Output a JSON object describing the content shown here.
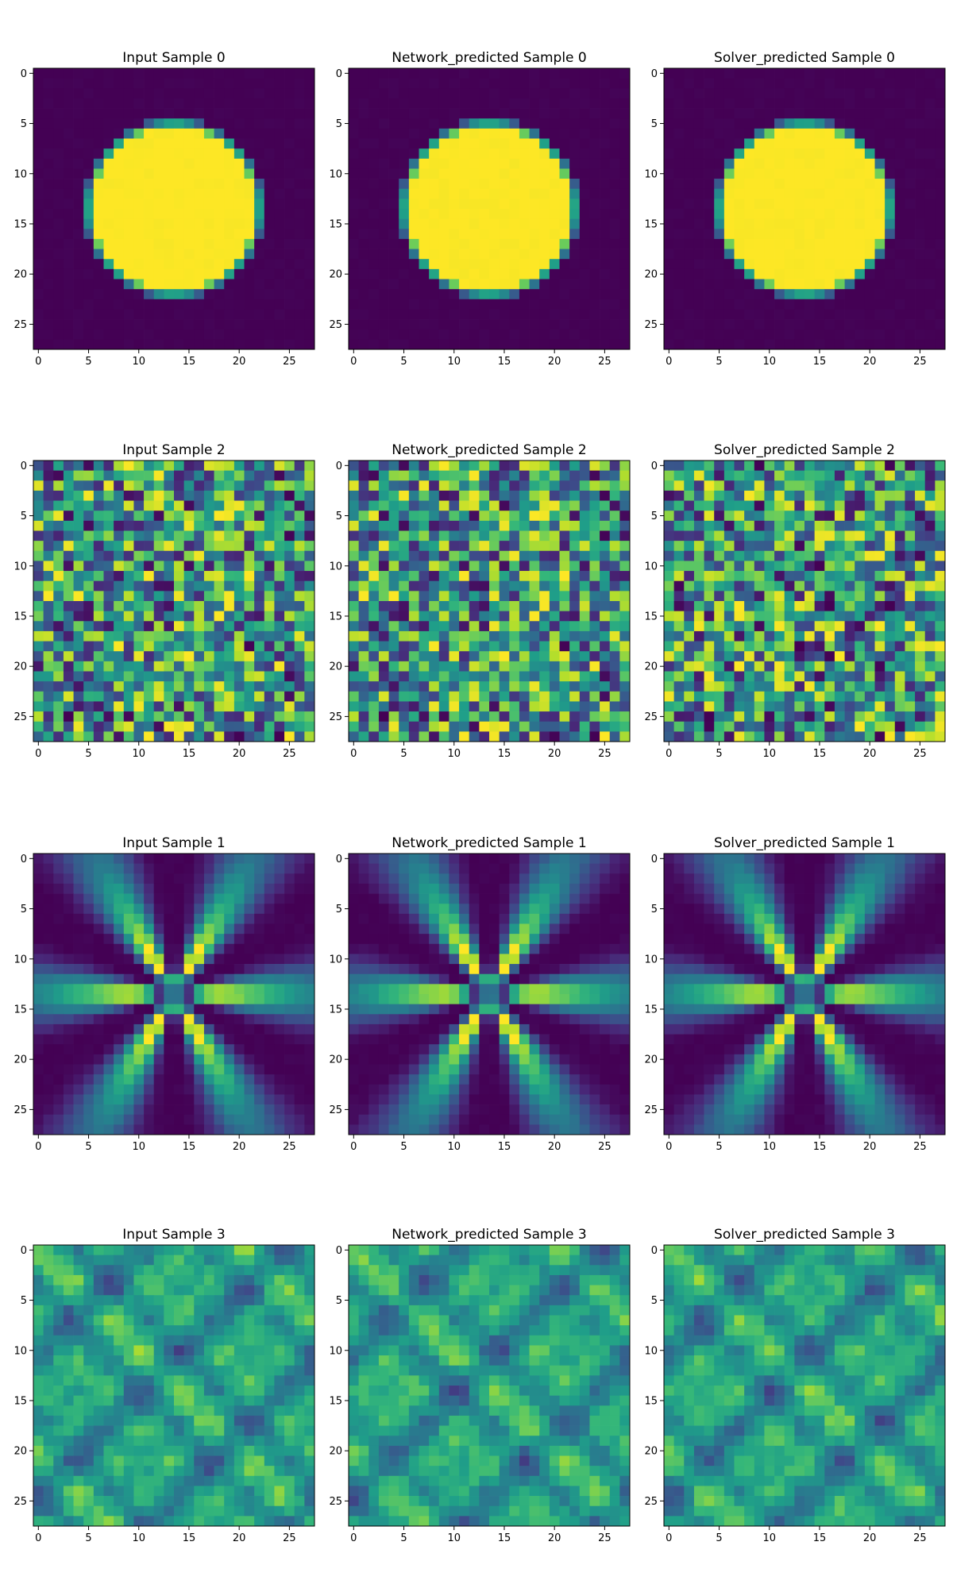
{
  "chart_data": {
    "type": "heatmap",
    "colormap": "viridis",
    "grid_size": 28,
    "xlim": [
      -0.5,
      27.5
    ],
    "ylim": [
      27.5,
      -0.5
    ],
    "y_axis_inverted": true,
    "xticks": [
      0,
      5,
      10,
      15,
      20,
      25
    ],
    "yticks": [
      0,
      5,
      10,
      15,
      20,
      25
    ],
    "layout": {
      "rows": 4,
      "cols": 3
    },
    "panels": [
      {
        "title": "Input Sample 0",
        "pattern": "disk",
        "seed": 11
      },
      {
        "title": "Network_predicted Sample 0",
        "pattern": "disk",
        "seed": 12
      },
      {
        "title": "Solver_predicted Sample 0",
        "pattern": "disk",
        "seed": 13
      },
      {
        "title": "Input Sample 2",
        "pattern": "noise",
        "seed": 42
      },
      {
        "title": "Network_predicted Sample 2",
        "pattern": "noise",
        "seed": 42
      },
      {
        "title": "Solver_predicted Sample 2",
        "pattern": "noise",
        "seed": 77
      },
      {
        "title": "Input Sample 1",
        "pattern": "star",
        "seed": 21
      },
      {
        "title": "Network_predicted Sample 1",
        "pattern": "star",
        "seed": 22
      },
      {
        "title": "Solver_predicted Sample 1",
        "pattern": "star",
        "seed": 23
      },
      {
        "title": "Input Sample 3",
        "pattern": "lattice",
        "seed": 31
      },
      {
        "title": "Network_predicted Sample 3",
        "pattern": "lattice",
        "seed": 32
      },
      {
        "title": "Solver_predicted Sample 3",
        "pattern": "lattice",
        "seed": 33
      }
    ]
  }
}
